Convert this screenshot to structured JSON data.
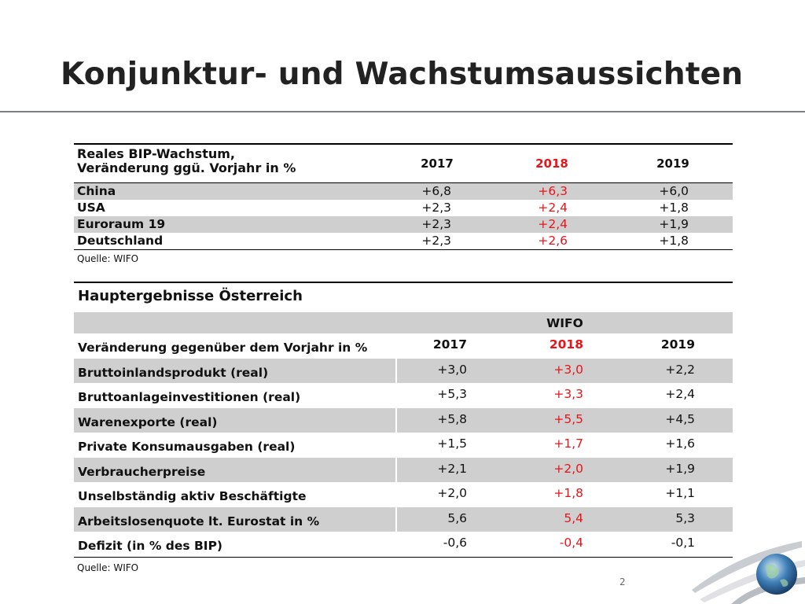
{
  "title": "Konjunktur- und Wachstumsaussichten",
  "table1": {
    "header_line1": "Reales BIP-Wachstum,",
    "header_line2": "Veränderung ggü. Vorjahr in %",
    "years": [
      "2017",
      "2018",
      "2019"
    ],
    "rows": [
      {
        "label": "China",
        "values": [
          "+6,8",
          "+6,3",
          "+6,0"
        ]
      },
      {
        "label": "USA",
        "values": [
          "+2,3",
          "+2,4",
          "+1,8"
        ]
      },
      {
        "label": "Euroraum 19",
        "values": [
          "+2,3",
          "+2,4",
          "+1,9"
        ]
      },
      {
        "label": "Deutschland",
        "values": [
          "+2,3",
          "+2,6",
          "+1,8"
        ]
      }
    ],
    "source": "Quelle: WIFO"
  },
  "table2": {
    "title": "Hauptergebnisse Österreich",
    "group_label": "WIFO",
    "years_label": "Veränderung gegenüber dem Vorjahr in %",
    "years": [
      "2017",
      "2018",
      "2019"
    ],
    "rows": [
      {
        "label": "Bruttoinlandsprodukt (real)",
        "values": [
          "+3,0",
          "+3,0",
          "+2,2"
        ]
      },
      {
        "label": "Bruttoanlageinvestitionen (real)",
        "values": [
          "+5,3",
          "+3,3",
          "+2,4"
        ]
      },
      {
        "label": "Warenexporte (real)",
        "values": [
          "+5,8",
          "+5,5",
          "+4,5"
        ]
      },
      {
        "label": "Private Konsumausgaben (real)",
        "values": [
          "+1,5",
          "+1,7",
          "+1,6"
        ]
      },
      {
        "label": "Verbraucherpreise",
        "values": [
          "+2,1",
          "+2,0",
          "+1,9"
        ]
      },
      {
        "label": "Unselbständig aktiv Beschäftigte",
        "values": [
          "+2,0",
          "+1,8",
          "+1,1"
        ]
      },
      {
        "label": "Arbeitslosenquote lt. Eurostat  in %",
        "values": [
          "5,6",
          "5,4",
          "5,3"
        ]
      },
      {
        "label": "Defizit (in % des BIP)",
        "values": [
          "-0,6",
          "-0,4",
          "-0,1"
        ]
      }
    ],
    "source": "Quelle: WIFO"
  },
  "page_number": "2",
  "colors": {
    "highlight": "#e8141a",
    "shade": "#cfcfcf",
    "rule": "#7a7e85"
  },
  "icons": {
    "corner_decoration": "globe-swoosh-icon"
  }
}
